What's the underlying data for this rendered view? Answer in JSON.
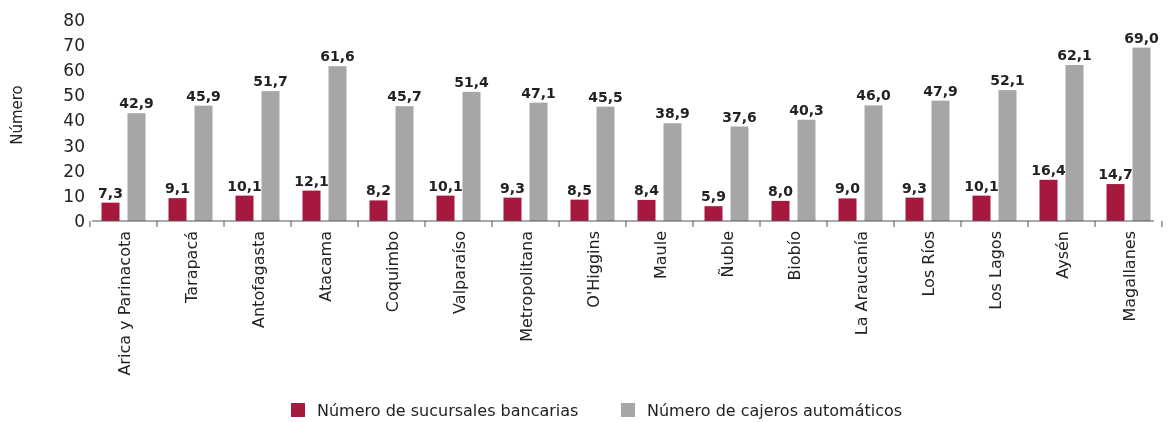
{
  "chart_data": {
    "type": "bar",
    "ylabel": "Número",
    "categories": [
      "Arica y Parinacota",
      "Tarapacá",
      "Antofagasta",
      "Atacama",
      "Coquimbo",
      "Valparaíso",
      "Metropolitana",
      "O'Higgins",
      "Maule",
      "Ñuble",
      "Biobío",
      "La Araucanía",
      "Los Ríos",
      "Los Lagos",
      "Aysén",
      "Magallanes"
    ],
    "series": [
      {
        "name": "Número de sucursales bancarias",
        "color": "#a6193e",
        "values": [
          7.3,
          9.1,
          10.1,
          12.1,
          8.2,
          10.1,
          9.3,
          8.5,
          8.4,
          5.9,
          8.0,
          9.0,
          9.3,
          10.1,
          16.4,
          14.7
        ],
        "value_labels": [
          "7,3",
          "9,1",
          "10,1",
          "12,1",
          "8,2",
          "10,1",
          "9,3",
          "8,5",
          "8,4",
          "5,9",
          "8,0",
          "9,0",
          "9,3",
          "10,1",
          "16,4",
          "14,7"
        ]
      },
      {
        "name": "Número de cajeros automáticos",
        "color": "#a6a6a6",
        "values": [
          42.9,
          45.9,
          51.7,
          61.6,
          45.7,
          51.4,
          47.1,
          45.5,
          38.9,
          37.6,
          40.3,
          46.0,
          47.9,
          52.1,
          62.1,
          69.0
        ],
        "value_labels": [
          "42,9",
          "45,9",
          "51,7",
          "61,6",
          "45,7",
          "51,4",
          "47,1",
          "45,5",
          "38,9",
          "37,6",
          "40,3",
          "46,0",
          "47,9",
          "52,1",
          "62,1",
          "69,0"
        ]
      }
    ],
    "ylim": [
      0,
      80
    ],
    "yticks": [
      0,
      10,
      20,
      30,
      40,
      50,
      60,
      70,
      80
    ],
    "grid": false,
    "legend": "bottom"
  }
}
